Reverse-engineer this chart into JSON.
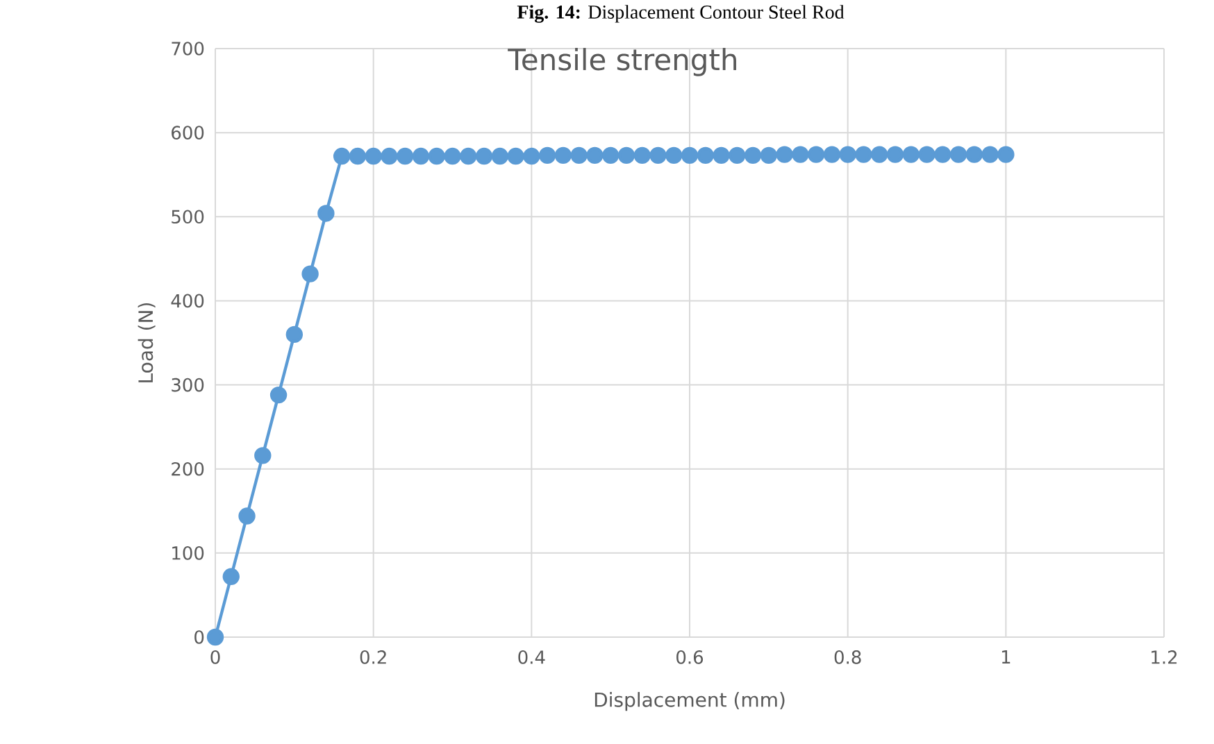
{
  "chart_data": {
    "type": "line",
    "title": "Tensile strength",
    "xlabel": "Displacement (mm)",
    "ylabel": "Load (N)",
    "annotations": [
      "**Fig. 14:** Displacement Contour Steel Rod"
    ],
    "x": [
      0,
      0.02,
      0.04,
      0.06,
      0.08,
      0.1,
      0.12,
      0.14,
      0.16,
      0.18,
      0.2,
      0.22,
      0.24,
      0.26,
      0.28,
      0.3,
      0.32,
      0.34,
      0.36,
      0.38,
      0.4,
      0.42,
      0.44,
      0.46,
      0.48,
      0.5,
      0.52,
      0.54,
      0.56,
      0.58,
      0.6,
      0.62,
      0.64,
      0.66,
      0.68,
      0.7,
      0.72,
      0.74,
      0.76,
      0.78,
      0.8,
      0.82,
      0.84,
      0.86,
      0.88,
      0.9,
      0.92,
      0.94,
      0.96,
      0.98,
      1
    ],
    "series": [
      {
        "color": "#5b9bd5",
        "values": [
          0,
          72,
          144,
          216,
          288,
          360,
          432,
          504,
          572,
          572,
          572,
          572,
          572,
          572,
          572,
          572,
          572,
          572,
          572,
          572,
          572,
          573,
          573,
          573,
          573,
          573,
          573,
          573,
          573,
          573,
          573,
          573,
          573,
          573,
          573,
          573,
          574,
          574,
          574,
          574,
          574,
          574,
          574,
          574,
          574,
          574,
          574,
          574,
          574,
          574,
          574
        ]
      }
    ],
    "xlim": [
      0,
      1.2
    ],
    "xticks": [
      0,
      0.2,
      0.4,
      0.6,
      0.8,
      1,
      1.2
    ],
    "ylim": [
      0,
      700
    ],
    "yticks": [
      0,
      100,
      200,
      300,
      400,
      500,
      600,
      700
    ],
    "grid": true,
    "marker": "circle",
    "line_style": "solid"
  }
}
